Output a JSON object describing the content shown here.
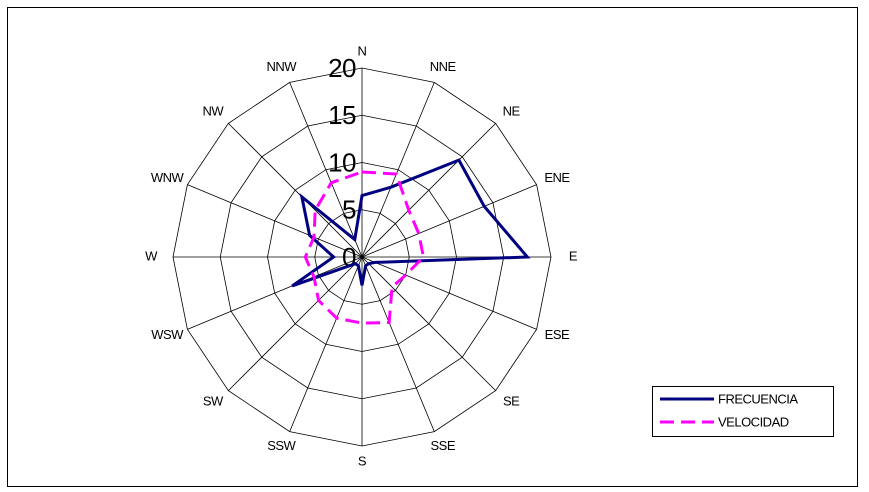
{
  "chart_data": {
    "type": "radar",
    "categories": [
      "N",
      "NNE",
      "NE",
      "ENE",
      "E",
      "ESE",
      "SE",
      "SSE",
      "S",
      "SSW",
      "SW",
      "WSW",
      "W",
      "WNW",
      "NW",
      "NNW"
    ],
    "series": [
      {
        "name": "FRECUENCIA",
        "color": "#000080",
        "dash": false,
        "values": [
          6.5,
          8,
          14.5,
          14,
          17.5,
          1.5,
          1,
          1,
          3,
          1,
          1,
          8,
          3,
          6,
          9,
          2
        ]
      },
      {
        "name": "VELOCIDAD",
        "color": "#ff00ff",
        "dash": true,
        "values": [
          9,
          9.5,
          7,
          6.5,
          6.5,
          5,
          4.5,
          7.5,
          7,
          7,
          6.5,
          5.5,
          6,
          5.5,
          7,
          8.5
        ]
      }
    ],
    "rlim": [
      0,
      20
    ],
    "rticks": [
      0,
      5,
      10,
      15,
      20
    ],
    "grid": true,
    "legend": "bottom-right"
  }
}
